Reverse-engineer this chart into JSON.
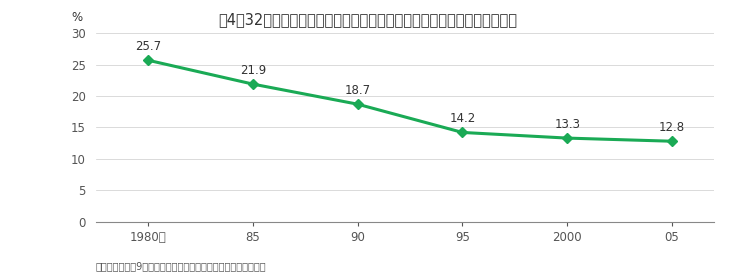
{
  "title": "図4－32　我が国の最終飲食費に占める国内農林水産業の帰属割合の推移",
  "x_labels": [
    "1980年",
    "85",
    "90",
    "95",
    "2000",
    "05"
  ],
  "x_values": [
    1980,
    1985,
    1990,
    1995,
    2000,
    2005
  ],
  "y_values": [
    25.7,
    21.9,
    18.7,
    14.2,
    13.3,
    12.8
  ],
  "ylabel": "%",
  "ylim": [
    0,
    30
  ],
  "yticks": [
    0,
    5,
    10,
    15,
    20,
    25,
    30
  ],
  "line_color": "#1aaa55",
  "marker_color": "#1aaa55",
  "title_bg_color": "#f5b8be",
  "title_text_color": "#333333",
  "footnote": "資料：総務省他9府省庁「産業連関表」を基に農林水産省で試算",
  "background_color": "#ffffff",
  "plot_bg_color": "#ffffff"
}
